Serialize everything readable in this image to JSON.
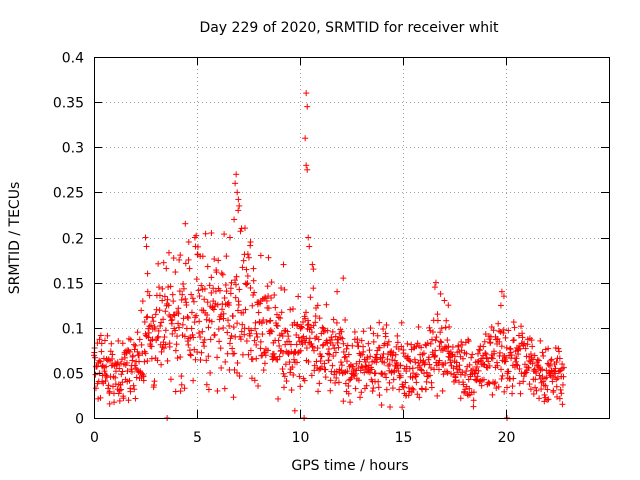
{
  "chart_data": {
    "type": "scatter",
    "title": "Day 229 of 2020, SRMTID for receiver whit",
    "xlabel": "GPS time / hours",
    "ylabel": "SRMTID / TECUs",
    "xlim": [
      0,
      25
    ],
    "ylim": [
      0,
      0.4
    ],
    "x_ticks": [
      0,
      5,
      10,
      15,
      20
    ],
    "x_tick_labels": [
      "0",
      "5",
      "10",
      "15",
      "20"
    ],
    "y_ticks": [
      0,
      0.05,
      0.1,
      0.15,
      0.2,
      0.25,
      0.3,
      0.35,
      0.4
    ],
    "y_tick_labels": [
      "0",
      "0.05",
      "0.1",
      "0.15",
      "0.2",
      "0.25",
      "0.3",
      "0.35",
      "0.4"
    ],
    "grid": true,
    "marker": "+",
    "color": "#ff0000",
    "series": [
      {
        "name": "whit",
        "baseline_profile": {
          "x": [
            0,
            1,
            1.8,
            2.5,
            3.5,
            4.5,
            5.5,
            6.5,
            7.0,
            8.0,
            9.0,
            10.0,
            10.5,
            11.0,
            12.0,
            13.0,
            14.0,
            15.0,
            16.0,
            16.6,
            17.5,
            18.5,
            19.5,
            20.0,
            21.0,
            22.0,
            22.8
          ],
          "y": [
            0.06,
            0.05,
            0.055,
            0.09,
            0.1,
            0.125,
            0.12,
            0.115,
            0.14,
            0.11,
            0.085,
            0.075,
            0.09,
            0.07,
            0.065,
            0.055,
            0.06,
            0.06,
            0.055,
            0.085,
            0.06,
            0.05,
            0.07,
            0.07,
            0.06,
            0.05,
            0.055
          ]
        },
        "peaks": [
          {
            "x": 10.3,
            "y": 0.36
          },
          {
            "x": 10.35,
            "y": 0.345
          },
          {
            "x": 10.25,
            "y": 0.31
          },
          {
            "x": 10.3,
            "y": 0.28
          },
          {
            "x": 10.35,
            "y": 0.275
          },
          {
            "x": 10.4,
            "y": 0.2
          },
          {
            "x": 10.45,
            "y": 0.19
          },
          {
            "x": 6.9,
            "y": 0.27
          },
          {
            "x": 6.85,
            "y": 0.26
          },
          {
            "x": 6.95,
            "y": 0.25
          },
          {
            "x": 7.0,
            "y": 0.23
          },
          {
            "x": 7.05,
            "y": 0.235
          },
          {
            "x": 6.8,
            "y": 0.22
          },
          {
            "x": 2.5,
            "y": 0.2
          },
          {
            "x": 2.55,
            "y": 0.19
          },
          {
            "x": 2.6,
            "y": 0.16
          },
          {
            "x": 4.6,
            "y": 0.195
          },
          {
            "x": 4.9,
            "y": 0.2
          },
          {
            "x": 5.7,
            "y": 0.205
          },
          {
            "x": 6.6,
            "y": 0.2
          },
          {
            "x": 7.6,
            "y": 0.195
          },
          {
            "x": 8.1,
            "y": 0.18
          },
          {
            "x": 9.2,
            "y": 0.17
          },
          {
            "x": 10.6,
            "y": 0.17
          },
          {
            "x": 10.65,
            "y": 0.165
          },
          {
            "x": 11.8,
            "y": 0.14
          },
          {
            "x": 12.1,
            "y": 0.155
          },
          {
            "x": 16.6,
            "y": 0.15
          },
          {
            "x": 16.55,
            "y": 0.145
          },
          {
            "x": 17.2,
            "y": 0.125
          },
          {
            "x": 19.8,
            "y": 0.14
          },
          {
            "x": 19.9,
            "y": 0.135
          },
          {
            "x": 9.75,
            "y": 0.008
          }
        ],
        "zero_points": [
          {
            "x": 3.55,
            "y": 0
          },
          {
            "x": 10.2,
            "y": 0
          },
          {
            "x": 20.05,
            "y": 0
          }
        ]
      }
    ]
  }
}
